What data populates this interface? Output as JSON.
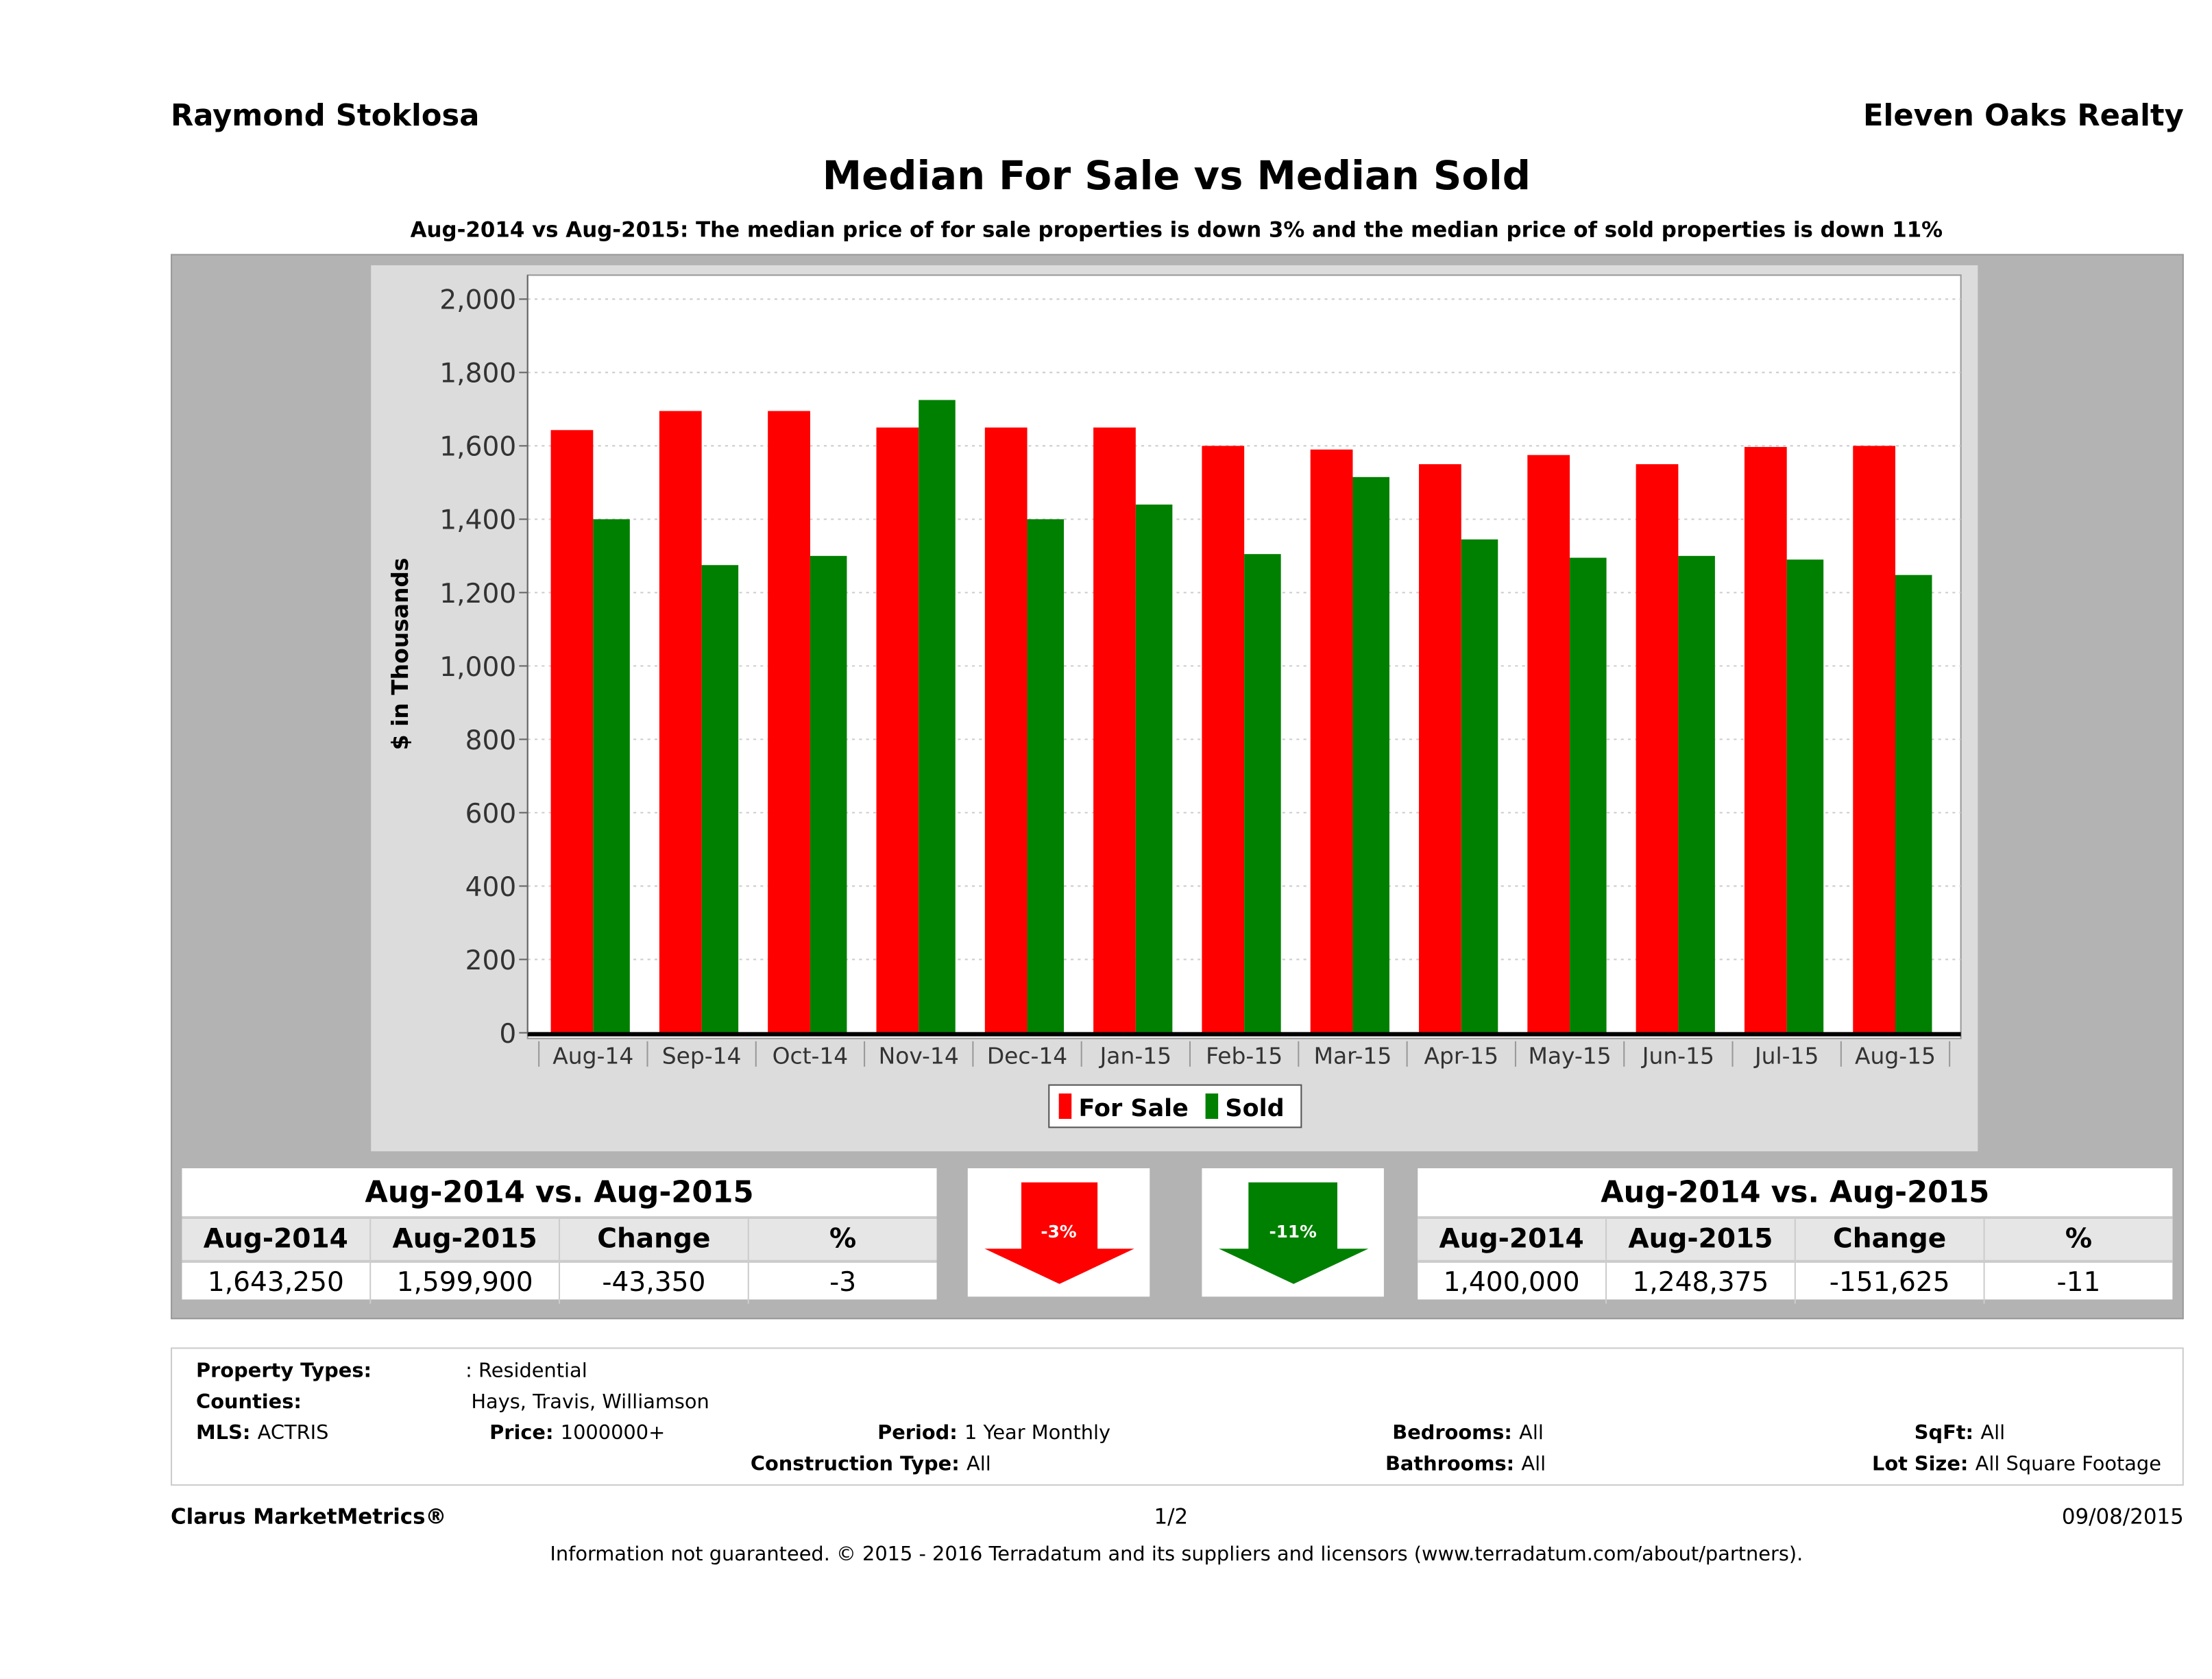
{
  "header": {
    "agent": "Raymond Stoklosa",
    "brokerage": "Eleven Oaks Realty"
  },
  "title": "Median For Sale vs Median Sold",
  "subtitle": "Aug-2014 vs Aug-2015: The median price of for sale properties is down 3% and the median price of sold properties is down 11%",
  "colors": {
    "for_sale": "#ff0000",
    "sold": "#008000"
  },
  "chart_data": {
    "type": "bar",
    "ylabel": "$ in Thousands",
    "ylim": [
      0,
      2000
    ],
    "yticks": [
      "0",
      "200",
      "400",
      "600",
      "800",
      "1,000",
      "1,200",
      "1,400",
      "1,600",
      "1,800",
      "2,000"
    ],
    "categories": [
      "Aug-14",
      "Sep-14",
      "Oct-14",
      "Nov-14",
      "Dec-14",
      "Jan-15",
      "Feb-15",
      "Mar-15",
      "Apr-15",
      "May-15",
      "Jun-15",
      "Jul-15",
      "Aug-15"
    ],
    "series": [
      {
        "name": "For Sale",
        "values": [
          1643,
          1695,
          1695,
          1650,
          1650,
          1650,
          1600,
          1590,
          1550,
          1575,
          1550,
          1597,
          1600
        ]
      },
      {
        "name": "Sold",
        "values": [
          1400,
          1275,
          1300,
          1725,
          1400,
          1440,
          1305,
          1515,
          1345,
          1295,
          1300,
          1290,
          1248
        ]
      }
    ],
    "grid": true,
    "legend": "bottom-center"
  },
  "for_sale_table": {
    "title": "Aug-2014 vs. Aug-2015",
    "headers": [
      "Aug-2014",
      "Aug-2015",
      "Change",
      "%"
    ],
    "values": [
      "1,643,250",
      "1,599,900",
      "-43,350",
      "-3"
    ]
  },
  "sold_table": {
    "title": "Aug-2014 vs. Aug-2015",
    "headers": [
      "Aug-2014",
      "Aug-2015",
      "Change",
      "%"
    ],
    "values": [
      "1,400,000",
      "1,248,375",
      "-151,625",
      "-11"
    ]
  },
  "arrows": {
    "for_sale": "-3%",
    "sold": "-11%"
  },
  "info": {
    "property_types_label": "Property Types:",
    "property_types": ": Residential",
    "counties_label": "Counties:",
    "counties": "Hays, Travis, Williamson",
    "mls_label": "MLS:",
    "mls": "ACTRIS",
    "price_label": "Price:",
    "price": "1000000+",
    "period_label": "Period:",
    "period": "1 Year Monthly",
    "construction_label": "Construction Type:",
    "construction": "All",
    "bedrooms_label": "Bedrooms:",
    "bedrooms": "All",
    "bathrooms_label": "Bathrooms:",
    "bathrooms": "All",
    "sqft_label": "SqFt:",
    "sqft": "All",
    "lot_label": "Lot Size:",
    "lot": "All Square Footage"
  },
  "footer": {
    "brand": "Clarus MarketMetrics®",
    "page": "1/2",
    "date": "09/08/2015",
    "disclaimer": "Information not guaranteed. © 2015 - 2016 Terradatum and its suppliers and licensors (www.terradatum.com/about/partners)."
  }
}
